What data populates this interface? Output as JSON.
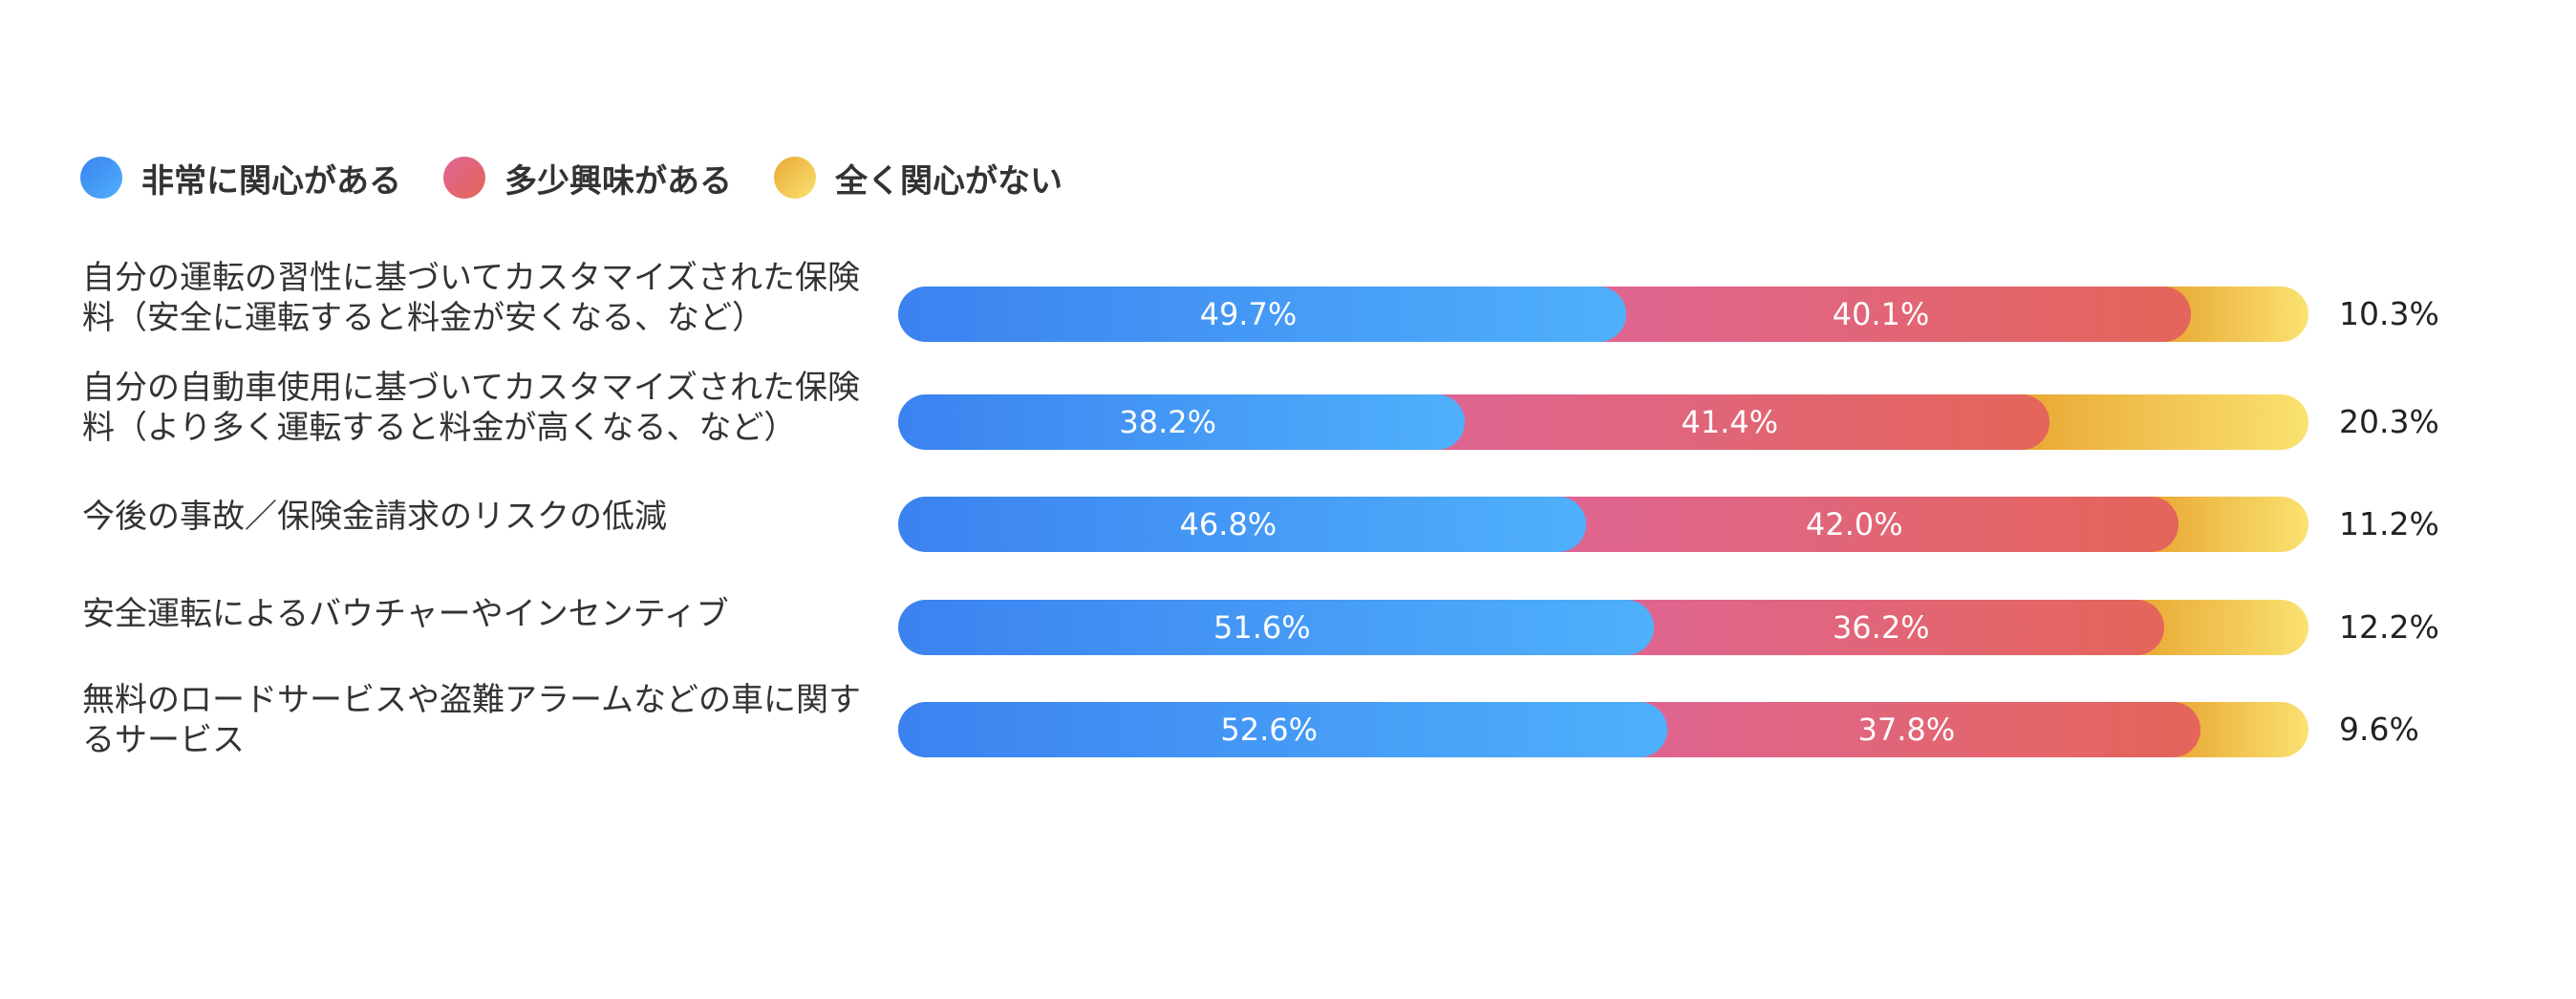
{
  "colors": {
    "very_interested_start": "#3b82f0",
    "very_interested_end": "#4fb0fb",
    "somewhat_interested_start": "#df6592",
    "somewhat_interested_end": "#e4655a",
    "not_interested_start": "#e9a834",
    "not_interested_end": "#fae271"
  },
  "chart_data": {
    "type": "bar",
    "orientation": "horizontal",
    "stacked": true,
    "legend_position": "top-left",
    "categories": [
      "自分の運転の習性に基づいてカスタマイズされた保険料（安全に運転すると料金が安くなる、など）",
      "自分の自動車使用に基づいてカスタマイズされた保険料（より多く運転すると料金が高くなる、など）",
      "今後の事故／保険金請求のリスクの低減",
      "安全運転によるバウチャーやインセンティブ",
      "無料のロードサービスや盗難アラームなどの車に関するサービス"
    ],
    "series": [
      {
        "name": "非常に関心がある",
        "values": [
          49.7,
          38.2,
          46.8,
          51.6,
          52.6
        ],
        "labels": [
          "49.7%",
          "38.2%",
          "46.8%",
          "51.6%",
          "52.6%"
        ]
      },
      {
        "name": "多少興味がある",
        "values": [
          40.1,
          41.4,
          42.0,
          36.2,
          37.8
        ],
        "labels": [
          "40.1%",
          "41.4%",
          "42.0%",
          "36.2%",
          "37.8%"
        ]
      },
      {
        "name": "全く関心がない",
        "values": [
          10.3,
          20.3,
          11.2,
          12.2,
          9.6
        ],
        "labels": [
          "10.3%",
          "20.3%",
          "11.2%",
          "12.2%",
          "9.6%"
        ]
      }
    ]
  }
}
